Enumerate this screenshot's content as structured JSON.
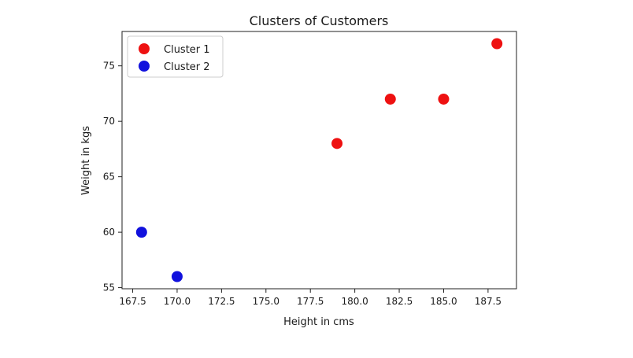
{
  "chart_data": {
    "type": "scatter",
    "title": "Clusters of Customers",
    "xlabel": "Height in cms",
    "ylabel": "Weight in kgs",
    "xlim": [
      166.9,
      189.1
    ],
    "ylim": [
      54.9,
      78.1
    ],
    "xticks": [
      167.5,
      170.0,
      172.5,
      175.0,
      177.5,
      180.0,
      182.5,
      185.0,
      187.5
    ],
    "xtick_labels": [
      "167.5",
      "170.0",
      "172.5",
      "175.0",
      "177.5",
      "180.0",
      "182.5",
      "185.0",
      "187.5"
    ],
    "yticks": [
      55,
      60,
      65,
      70,
      75
    ],
    "ytick_labels": [
      "55",
      "60",
      "65",
      "70",
      "75"
    ],
    "grid": false,
    "legend_position": "top-left",
    "series": [
      {
        "name": "Cluster 1",
        "color": "#ee1111",
        "points": [
          [
            179,
            68
          ],
          [
            182,
            72
          ],
          [
            185,
            72
          ],
          [
            188,
            77
          ]
        ]
      },
      {
        "name": "Cluster 2",
        "color": "#1111dd",
        "points": [
          [
            168,
            60
          ],
          [
            170,
            56
          ]
        ]
      }
    ]
  }
}
